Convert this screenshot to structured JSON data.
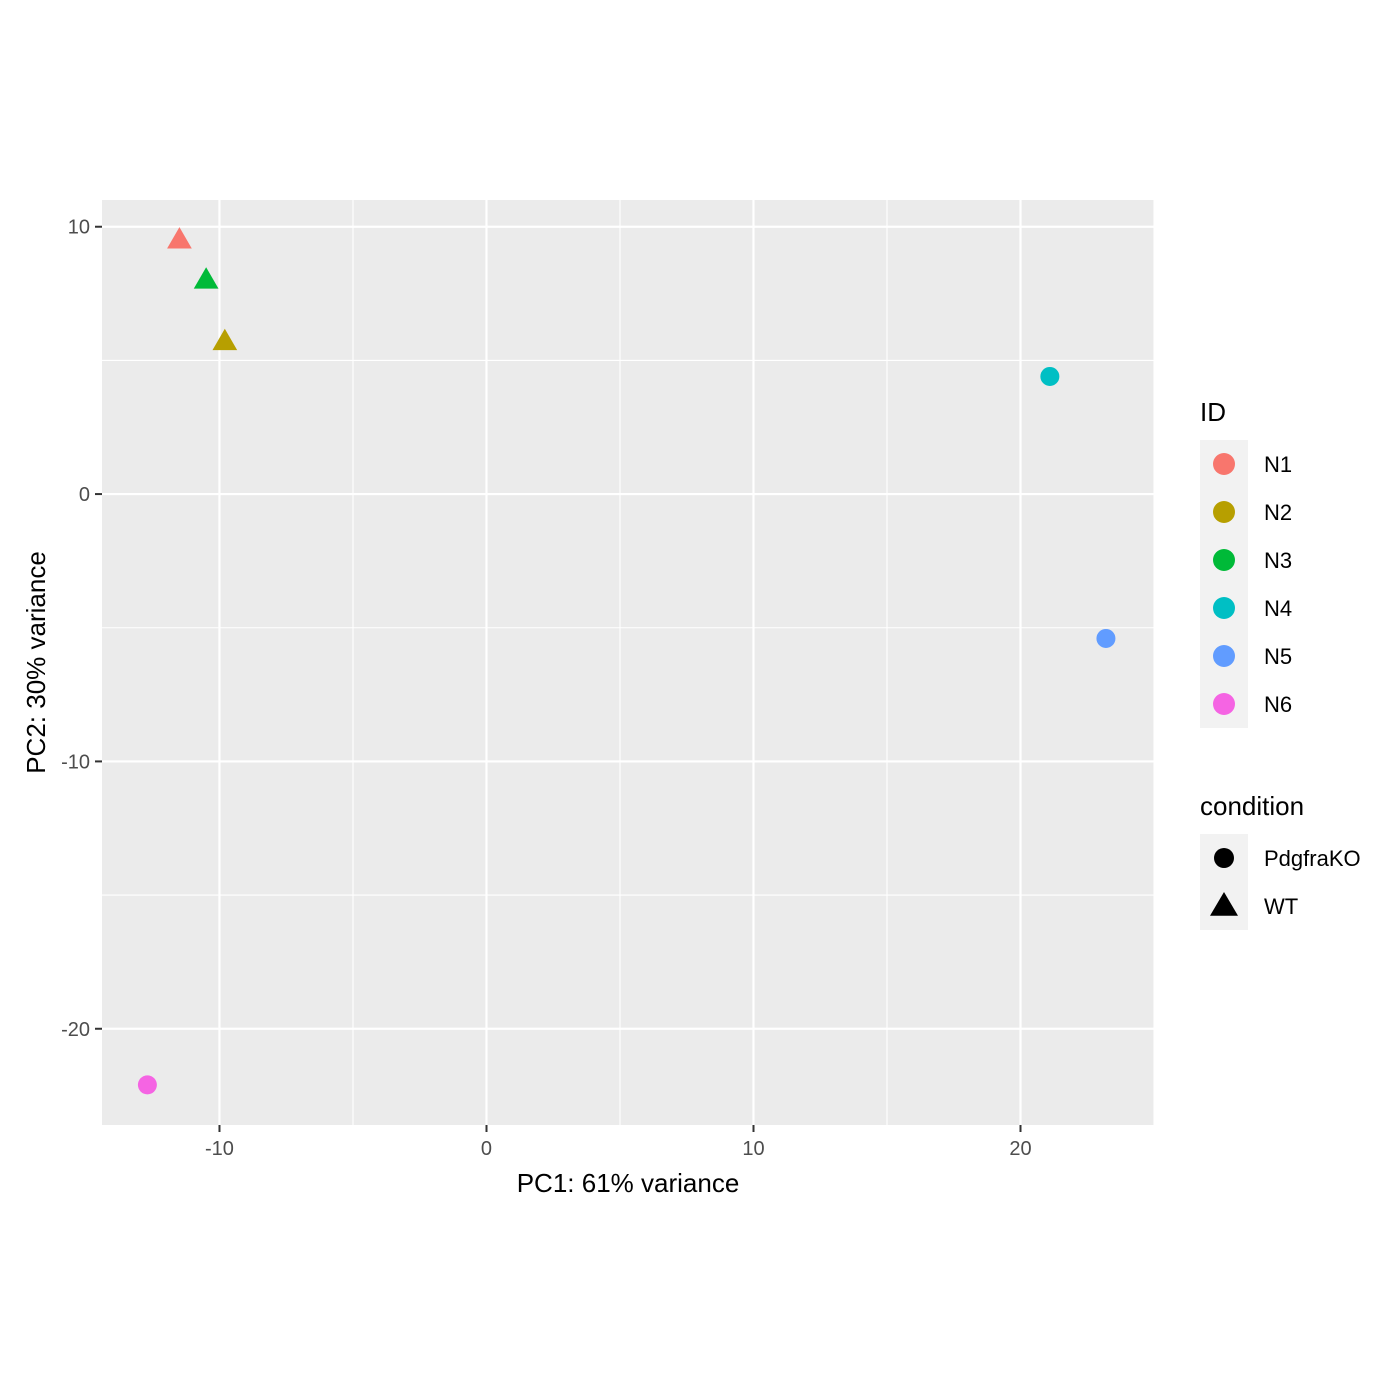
{
  "chart_data": {
    "type": "scatter",
    "xlabel": "PC1: 61% variance",
    "ylabel": "PC2: 30% variance",
    "xlim": [
      -14.4,
      25.0
    ],
    "ylim": [
      -23.6,
      11.0
    ],
    "x_ticks": [
      -10,
      0,
      10,
      20
    ],
    "x_tick_labels": [
      "-10",
      "0",
      "10",
      "20"
    ],
    "y_ticks": [
      10,
      0,
      -10,
      -20
    ],
    "y_tick_labels": [
      "10",
      "0",
      "-10",
      "-20"
    ],
    "grid": true,
    "legend_position": "right",
    "points": [
      {
        "id": "N1",
        "condition": "WT",
        "x": -11.5,
        "y": 9.5
      },
      {
        "id": "N2",
        "condition": "WT",
        "x": -9.8,
        "y": 5.7
      },
      {
        "id": "N3",
        "condition": "WT",
        "x": -10.5,
        "y": 8.0
      },
      {
        "id": "N4",
        "condition": "PdgfraKO",
        "x": 21.1,
        "y": 4.4
      },
      {
        "id": "N5",
        "condition": "PdgfraKO",
        "x": 23.2,
        "y": -5.4
      },
      {
        "id": "N6",
        "condition": "PdgfraKO",
        "x": -12.7,
        "y": -22.1
      }
    ],
    "legend_id": {
      "title": "ID",
      "items": [
        {
          "label": "N1",
          "color": "#F8766D"
        },
        {
          "label": "N2",
          "color": "#B79F00"
        },
        {
          "label": "N3",
          "color": "#00BA38"
        },
        {
          "label": "N4",
          "color": "#00BFC4"
        },
        {
          "label": "N5",
          "color": "#619CFF"
        },
        {
          "label": "N6",
          "color": "#F564E3"
        }
      ]
    },
    "legend_condition": {
      "title": "condition",
      "items": [
        {
          "label": "PdgfraKO",
          "shape": "circle"
        },
        {
          "label": "WT",
          "shape": "triangle"
        }
      ]
    },
    "colors": {
      "panel_background": "#EBEBEB",
      "grid": "#FFFFFF",
      "axis_tick": "#333333",
      "tick_label": "#4D4D4D"
    }
  }
}
